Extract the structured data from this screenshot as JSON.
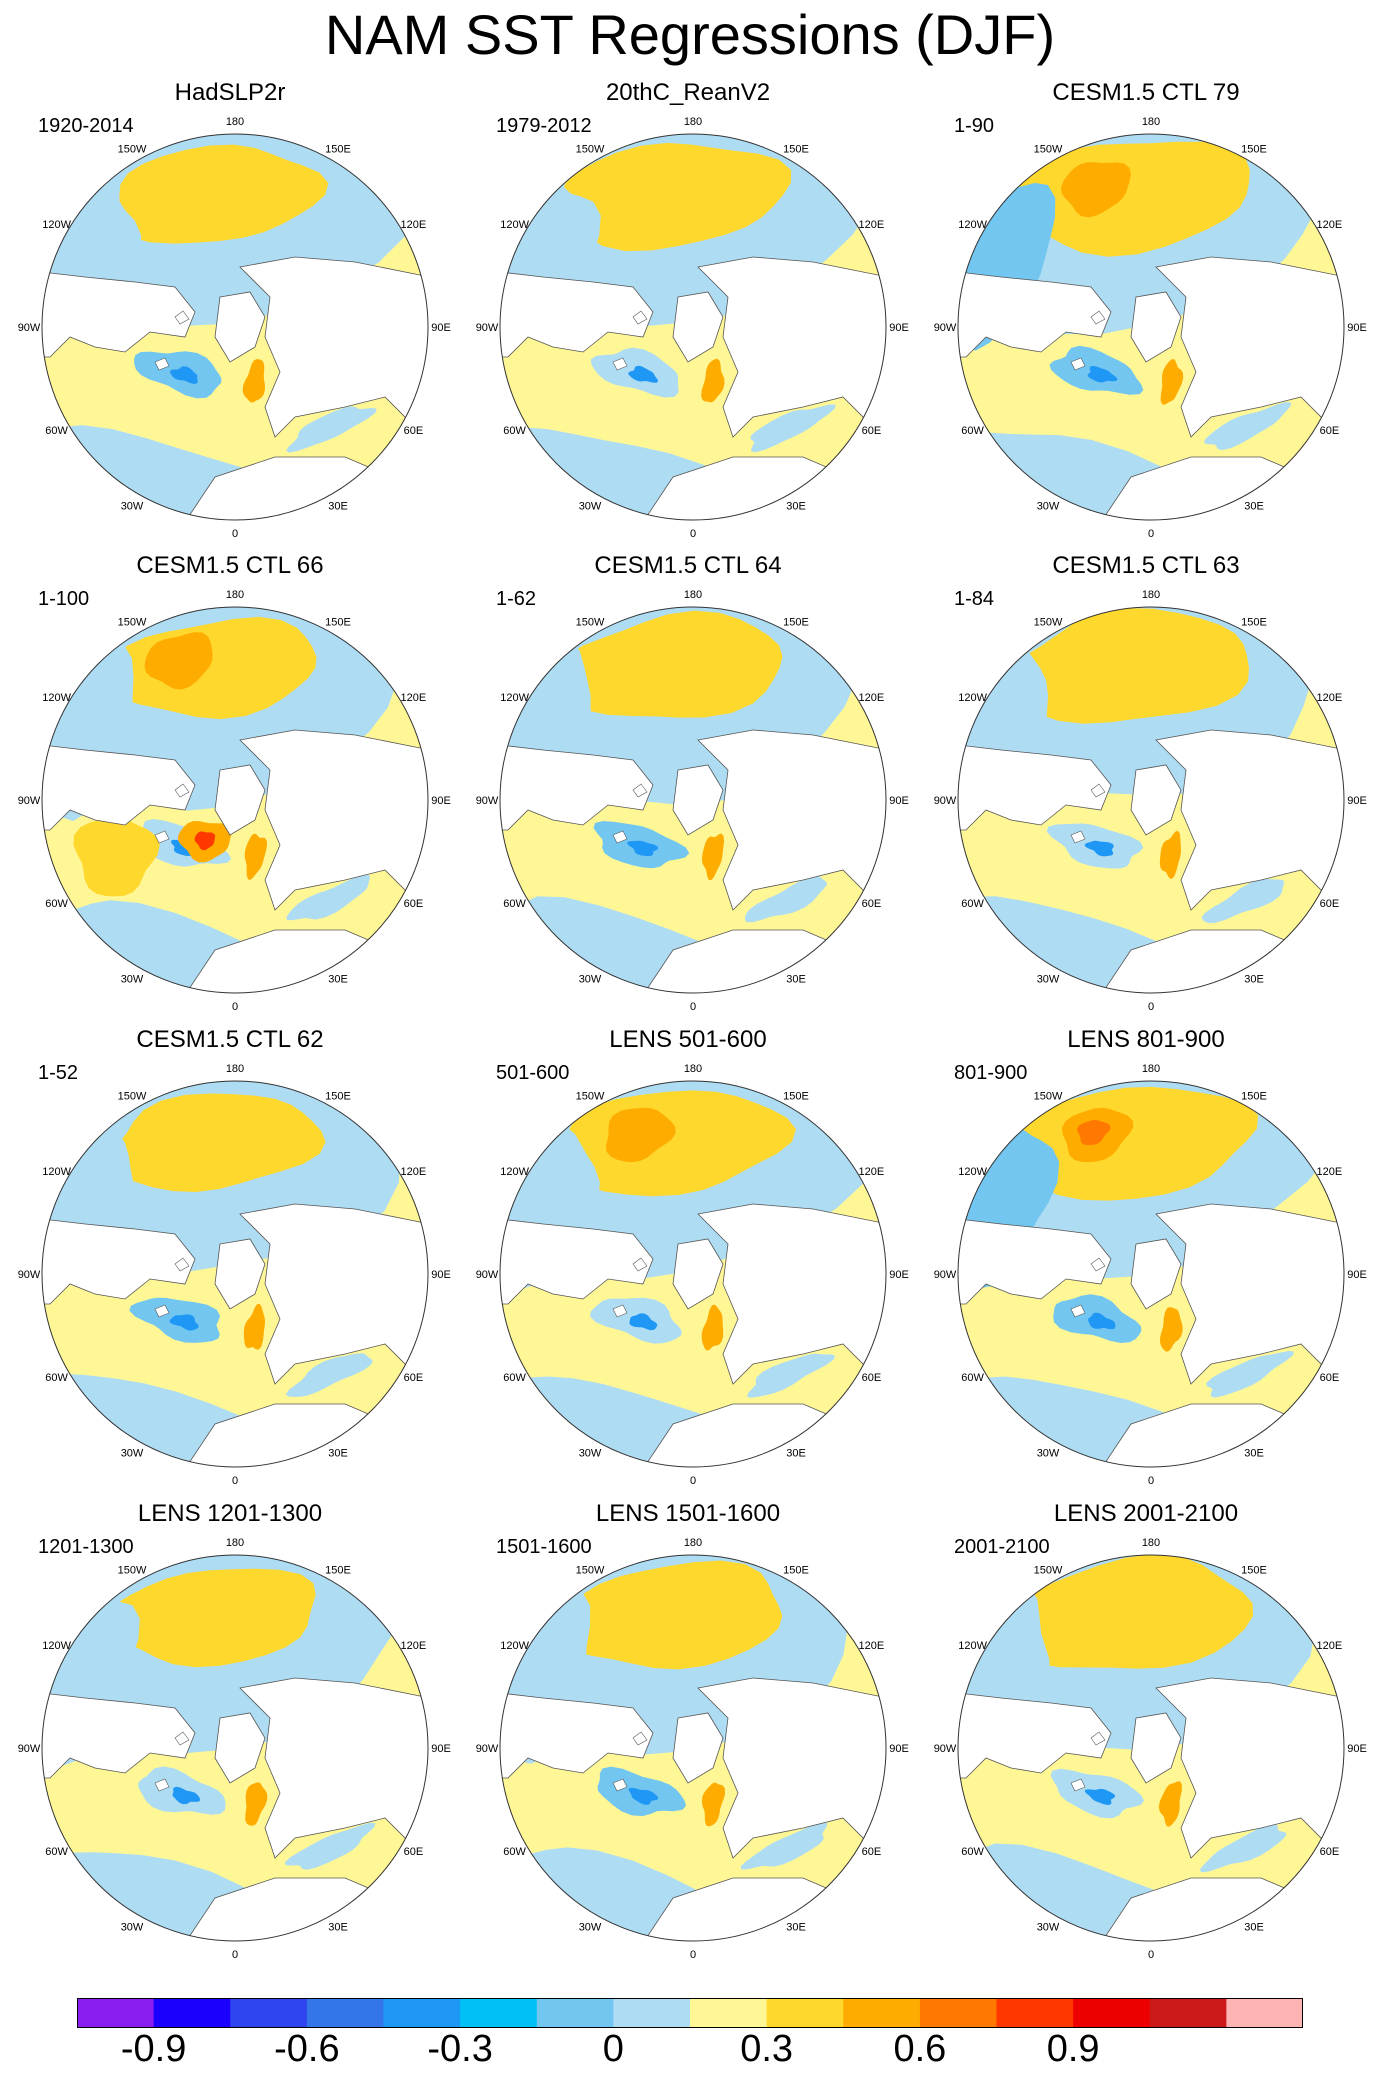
{
  "figure": {
    "title": "NAM SST Regressions (DJF)"
  },
  "chart_data": {
    "type": "heatmap",
    "projection": "north-polar-stereographic",
    "variable": "SST regression on NAM index",
    "season": "DJF",
    "longitude_labels": [
      "180",
      "150E",
      "120E",
      "90E",
      "60E",
      "30E",
      "0",
      "30W",
      "60W",
      "90W",
      "120W",
      "150W"
    ],
    "colorbar": {
      "labels": [
        "-0.9",
        "-0.6",
        "-0.3",
        "0",
        "0.3",
        "0.6",
        "0.9"
      ],
      "label_values": [
        -0.9,
        -0.6,
        -0.3,
        0,
        0.3,
        0.6,
        0.9
      ],
      "levels": [
        -0.9,
        -0.75,
        -0.6,
        -0.45,
        -0.3,
        -0.15,
        0,
        0.15,
        0.3,
        0.45,
        0.6,
        0.75,
        0.9
      ],
      "colors": [
        "#8a1ef0",
        "#1c00ff",
        "#2f45f0",
        "#3476ea",
        "#1f97f5",
        "#00c0f5",
        "#72c6f0",
        "#aedcf3",
        "#fff796",
        "#ffd82e",
        "#ffac00",
        "#ff7800",
        "#ff3800",
        "#ee0000",
        "#cc1a1a",
        "#ffb4b4"
      ]
    },
    "panels": [
      {
        "name": "HadSLP2r",
        "period": "1920-2014"
      },
      {
        "name": "20thC_ReanV2",
        "period": "1979-2012"
      },
      {
        "name": "CESM1.5 CTL 79",
        "period": "1-90"
      },
      {
        "name": "CESM1.5 CTL 66",
        "period": "1-100"
      },
      {
        "name": "CESM1.5 CTL 64",
        "period": "1-62"
      },
      {
        "name": "CESM1.5 CTL 63",
        "period": "1-84"
      },
      {
        "name": "CESM1.5 CTL 62",
        "period": "1-52"
      },
      {
        "name": "LENS 501-600",
        "period": "501-600"
      },
      {
        "name": "LENS 801-900",
        "period": "801-900"
      },
      {
        "name": "LENS 1201-1300",
        "period": "1201-1300"
      },
      {
        "name": "LENS 1501-1600",
        "period": "1501-1600"
      },
      {
        "name": "LENS 2001-2100",
        "period": "2001-2100"
      }
    ]
  }
}
